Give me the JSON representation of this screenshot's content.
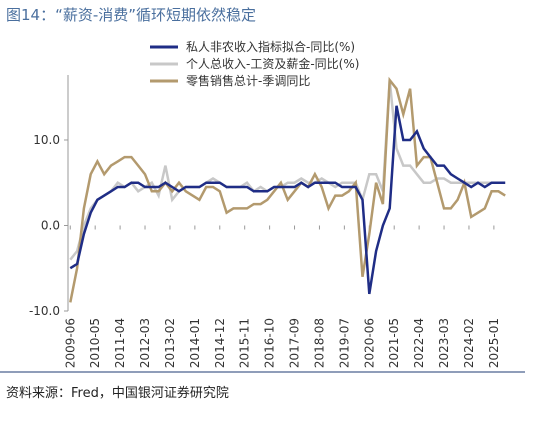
{
  "chart_data": {
    "type": "line",
    "title": "图14：“薪资-消费”循环短期依然稳定",
    "source": "资料来源：Fred，中国银河证券研究院",
    "x": [
      "2009-06",
      "2009-09",
      "2009-12",
      "2010-03",
      "2010-06",
      "2010-09",
      "2010-12",
      "2011-03",
      "2011-06",
      "2011-09",
      "2011-12",
      "2012-03",
      "2012-06",
      "2012-09",
      "2012-12",
      "2013-03",
      "2013-06",
      "2013-09",
      "2013-12",
      "2014-03",
      "2014-06",
      "2014-09",
      "2014-12",
      "2015-03",
      "2015-06",
      "2015-09",
      "2015-12",
      "2016-03",
      "2016-06",
      "2016-09",
      "2016-12",
      "2017-03",
      "2017-06",
      "2017-09",
      "2017-12",
      "2018-03",
      "2018-06",
      "2018-09",
      "2018-12",
      "2019-03",
      "2019-06",
      "2019-09",
      "2019-12",
      "2020-03",
      "2020-06",
      "2020-09",
      "2020-12",
      "2021-03",
      "2021-06",
      "2021-09",
      "2021-12",
      "2022-03",
      "2022-06",
      "2022-09",
      "2022-12",
      "2023-03",
      "2023-06",
      "2023-09",
      "2023-12",
      "2024-03",
      "2024-06",
      "2024-09",
      "2024-12",
      "2025-03",
      "2025-06"
    ],
    "xlim": [
      "2009-05",
      "2025-09"
    ],
    "xticks": [
      "2009-06",
      "2010-05",
      "2011-04",
      "2012-03",
      "2013-02",
      "2014-01",
      "2014-12",
      "2015-11",
      "2016-10",
      "2017-09",
      "2018-08",
      "2019-07",
      "2020-06",
      "2021-05",
      "2022-04",
      "2023-03",
      "2024-02",
      "2025-01"
    ],
    "ylim": [
      -10,
      17.6
    ],
    "yticks": [
      {
        "value": -10,
        "label": "-10.0"
      },
      {
        "value": 0,
        "label": "0.0"
      },
      {
        "value": 10,
        "label": "10.0"
      }
    ],
    "series": [
      {
        "name": "私人非农收入指标拟合-同比(%)",
        "color": "#1f2d86",
        "values": [
          -5,
          -4.5,
          -1,
          1.5,
          3,
          3.5,
          4,
          4.5,
          4.5,
          5,
          5,
          4.5,
          4.5,
          4.5,
          5,
          4.5,
          4,
          4.5,
          4.5,
          4.5,
          5,
          5,
          5,
          4.5,
          4.5,
          4.5,
          4.5,
          4,
          4,
          4,
          4.5,
          4.5,
          4.5,
          4.5,
          5,
          4.5,
          5,
          5,
          5,
          5,
          4.5,
          4.5,
          4.5,
          3,
          -8,
          -3,
          0,
          2,
          14,
          10,
          10,
          11,
          9,
          8,
          7,
          7,
          6,
          5.5,
          5,
          4.5,
          5,
          4.5,
          5,
          5,
          5
        ]
      },
      {
        "name": "个人总收入-工资及薪金-同比(%)",
        "color": "#c8c8c8",
        "values": [
          -4,
          -3,
          0,
          2,
          3,
          3.5,
          4,
          5,
          4.5,
          5,
          4,
          4.5,
          5,
          3.5,
          7,
          3,
          4,
          4.5,
          4.5,
          4.5,
          5,
          5.5,
          5,
          4.5,
          4.5,
          4.5,
          5,
          4,
          4.5,
          4,
          4.5,
          4.5,
          5,
          5,
          5.5,
          5,
          5,
          5.5,
          5,
          4.5,
          5,
          5,
          5,
          3,
          6,
          6,
          4,
          17,
          9,
          7,
          7,
          6,
          5,
          5,
          5.5,
          5.5,
          5,
          5,
          5,
          5,
          5,
          5,
          5,
          5,
          5
        ]
      },
      {
        "name": "零售销售总计-季调同比",
        "color": "#b39a6e",
        "values": [
          -9,
          -5,
          2,
          6,
          7.5,
          6,
          7,
          7.5,
          8,
          8,
          7,
          6,
          4,
          4,
          5,
          4,
          5,
          4,
          3.5,
          3,
          4.5,
          4.5,
          4,
          1.5,
          2,
          2,
          2,
          2.5,
          2.5,
          3,
          4,
          5,
          3,
          4,
          5,
          4.5,
          6,
          4.5,
          2,
          3.5,
          3.5,
          4,
          5,
          -6,
          -1,
          5,
          2.5,
          17,
          16,
          13,
          16,
          7,
          8,
          8,
          5,
          2,
          2,
          3,
          5,
          1,
          1.5,
          2,
          4,
          4,
          3.5
        ]
      }
    ]
  }
}
